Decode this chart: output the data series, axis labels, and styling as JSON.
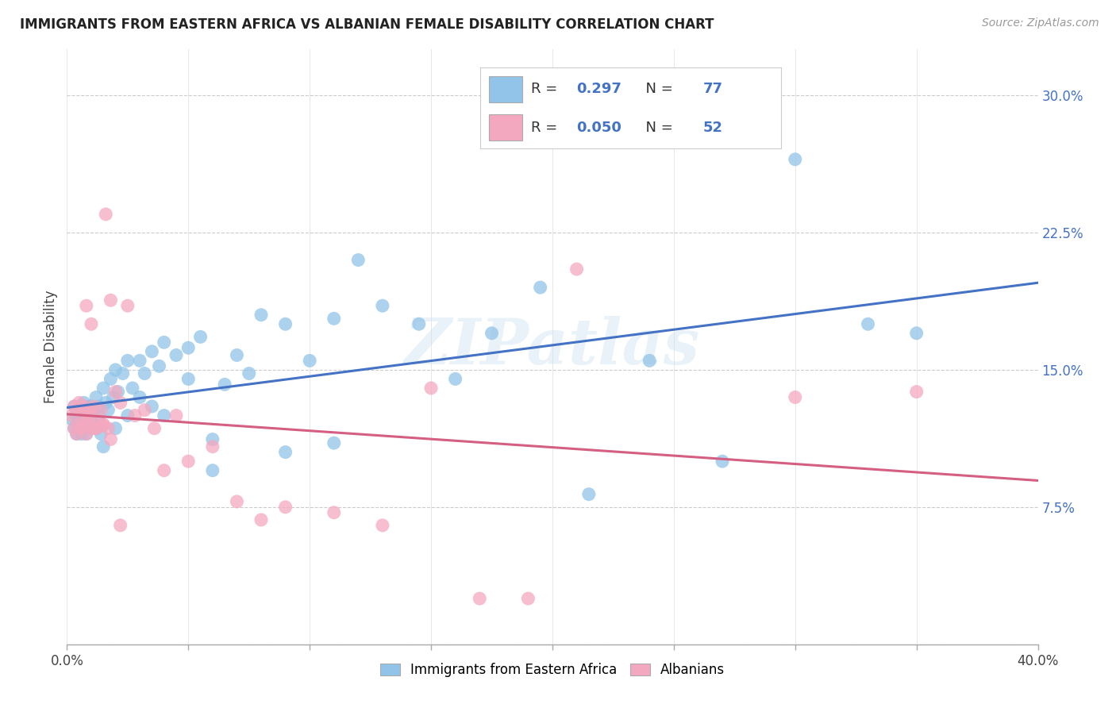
{
  "title": "IMMIGRANTS FROM EASTERN AFRICA VS ALBANIAN FEMALE DISABILITY CORRELATION CHART",
  "source": "Source: ZipAtlas.com",
  "ylabel": "Female Disability",
  "ytick_values": [
    0.075,
    0.15,
    0.225,
    0.3
  ],
  "ytick_labels": [
    "7.5%",
    "15.0%",
    "22.5%",
    "30.0%"
  ],
  "xlim": [
    0.0,
    0.4
  ],
  "ylim": [
    0.0,
    0.325
  ],
  "color_blue": "#91c4e8",
  "color_pink": "#f4a8bf",
  "trendline_blue": "#4472c4",
  "trendline_pink": "#d45f82",
  "watermark": "ZIPatlas",
  "legend_R1": "0.297",
  "legend_N1": "77",
  "legend_R2": "0.050",
  "legend_N2": "52",
  "blue_scatter_x": [
    0.002,
    0.003,
    0.003,
    0.004,
    0.004,
    0.005,
    0.005,
    0.005,
    0.006,
    0.006,
    0.006,
    0.007,
    0.007,
    0.007,
    0.008,
    0.008,
    0.008,
    0.009,
    0.009,
    0.01,
    0.01,
    0.011,
    0.011,
    0.012,
    0.012,
    0.013,
    0.013,
    0.014,
    0.015,
    0.016,
    0.017,
    0.018,
    0.019,
    0.02,
    0.021,
    0.023,
    0.025,
    0.027,
    0.03,
    0.032,
    0.035,
    0.038,
    0.04,
    0.045,
    0.05,
    0.055,
    0.06,
    0.065,
    0.07,
    0.08,
    0.09,
    0.1,
    0.11,
    0.12,
    0.13,
    0.145,
    0.16,
    0.175,
    0.195,
    0.215,
    0.24,
    0.27,
    0.3,
    0.33,
    0.35,
    0.01,
    0.015,
    0.02,
    0.025,
    0.03,
    0.035,
    0.04,
    0.05,
    0.06,
    0.075,
    0.09,
    0.11
  ],
  "blue_scatter_y": [
    0.123,
    0.118,
    0.13,
    0.115,
    0.125,
    0.12,
    0.128,
    0.118,
    0.122,
    0.13,
    0.115,
    0.125,
    0.118,
    0.132,
    0.12,
    0.128,
    0.115,
    0.125,
    0.13,
    0.118,
    0.122,
    0.128,
    0.12,
    0.135,
    0.118,
    0.125,
    0.13,
    0.115,
    0.14,
    0.132,
    0.128,
    0.145,
    0.135,
    0.15,
    0.138,
    0.148,
    0.155,
    0.14,
    0.155,
    0.148,
    0.16,
    0.152,
    0.165,
    0.158,
    0.162,
    0.168,
    0.095,
    0.142,
    0.158,
    0.18,
    0.175,
    0.155,
    0.178,
    0.21,
    0.185,
    0.175,
    0.145,
    0.17,
    0.195,
    0.082,
    0.155,
    0.1,
    0.265,
    0.175,
    0.17,
    0.13,
    0.108,
    0.118,
    0.125,
    0.135,
    0.13,
    0.125,
    0.145,
    0.112,
    0.148,
    0.105,
    0.11
  ],
  "pink_scatter_x": [
    0.002,
    0.003,
    0.003,
    0.004,
    0.004,
    0.005,
    0.005,
    0.006,
    0.006,
    0.007,
    0.007,
    0.008,
    0.008,
    0.009,
    0.009,
    0.01,
    0.01,
    0.011,
    0.012,
    0.013,
    0.014,
    0.015,
    0.016,
    0.017,
    0.018,
    0.02,
    0.022,
    0.025,
    0.028,
    0.032,
    0.036,
    0.04,
    0.045,
    0.05,
    0.06,
    0.07,
    0.08,
    0.09,
    0.11,
    0.13,
    0.15,
    0.17,
    0.19,
    0.21,
    0.3,
    0.35,
    0.008,
    0.01,
    0.012,
    0.015,
    0.018,
    0.022
  ],
  "pink_scatter_y": [
    0.125,
    0.118,
    0.13,
    0.115,
    0.128,
    0.12,
    0.132,
    0.118,
    0.128,
    0.122,
    0.13,
    0.115,
    0.125,
    0.12,
    0.128,
    0.118,
    0.125,
    0.13,
    0.118,
    0.122,
    0.128,
    0.12,
    0.235,
    0.118,
    0.188,
    0.138,
    0.132,
    0.185,
    0.125,
    0.128,
    0.118,
    0.095,
    0.125,
    0.1,
    0.108,
    0.078,
    0.068,
    0.075,
    0.072,
    0.065,
    0.14,
    0.025,
    0.025,
    0.205,
    0.135,
    0.138,
    0.185,
    0.175,
    0.118,
    0.12,
    0.112,
    0.065
  ]
}
